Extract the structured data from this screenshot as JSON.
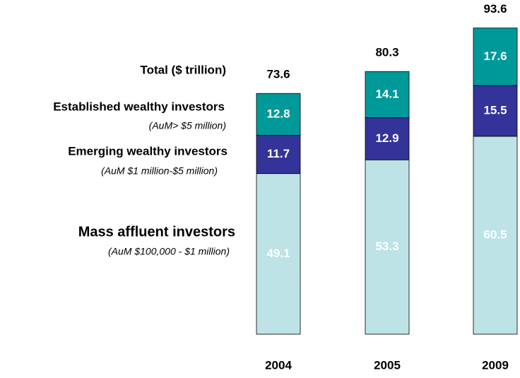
{
  "chart_data": {
    "type": "stacked_bar",
    "categories": [
      "2004",
      "2005",
      "2009"
    ],
    "total_label": "Total ($ trillion)",
    "totals": [
      73.6,
      80.3,
      93.6
    ],
    "series": [
      {
        "name": "Mass affluent investors",
        "subtitle": "(AuM $100,000 - $1 million)",
        "color": "#bde3e6",
        "values": [
          49.1,
          53.3,
          60.5
        ]
      },
      {
        "name": "Emerging wealthy investors",
        "subtitle": "(AuM $1 million-$5 million)",
        "color": "#333399",
        "values": [
          11.7,
          12.9,
          15.5
        ]
      },
      {
        "name": "Established wealthy investors",
        "subtitle": "(AuM> $5 million)",
        "color": "#009999",
        "values": [
          12.8,
          14.1,
          17.6
        ]
      }
    ]
  }
}
